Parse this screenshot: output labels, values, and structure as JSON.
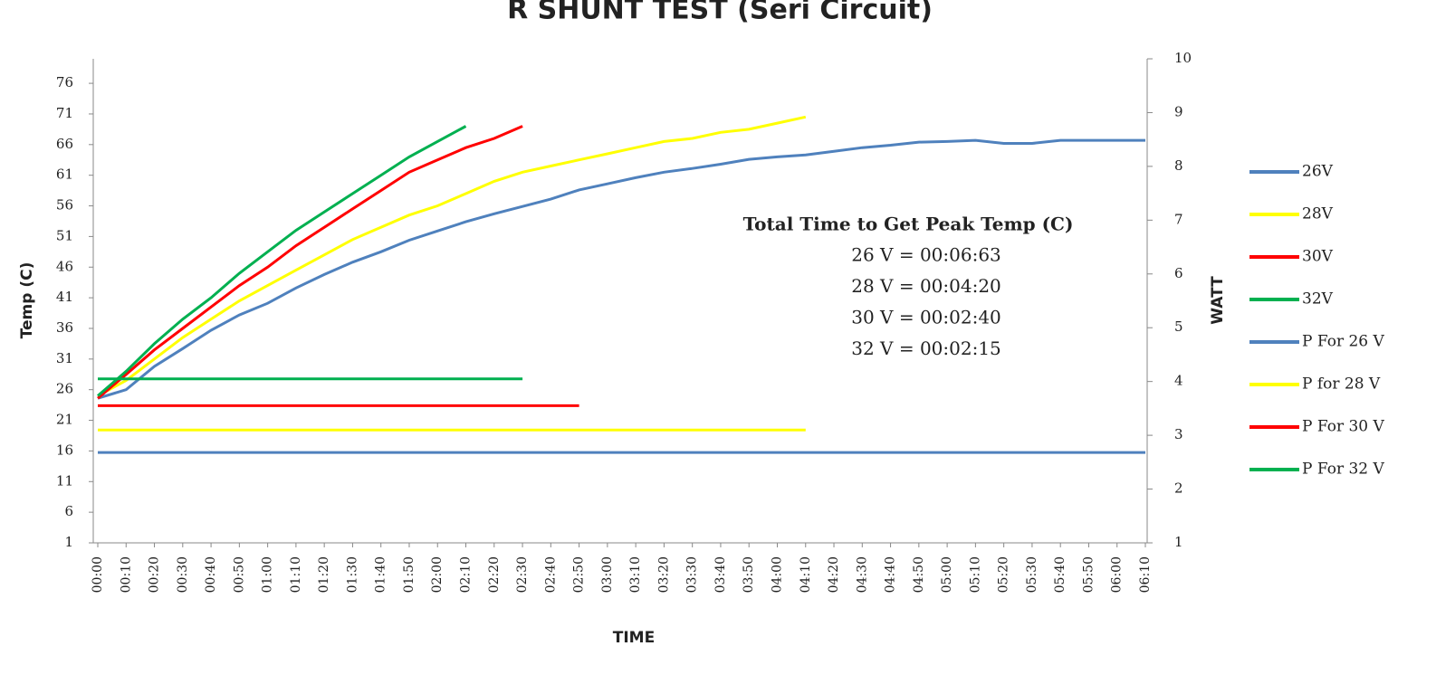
{
  "chart_data": {
    "type": "line",
    "title": "R SHUNT TEST (Seri Circuit)",
    "x_label": "TIME",
    "y_label": "Temp (C)",
    "y2_label": "WATT",
    "annotation_title": "Total Time to Get Peak Temp (C)",
    "annotation_lines": [
      "26 V = 00:06:63",
      "28 V = 00:04:20",
      "30 V = 00:02:40",
      "32 V =  00:02:15"
    ],
    "categories": [
      "00:00",
      "00:10",
      "00:20",
      "00:30",
      "00:40",
      "00:50",
      "01:00",
      "01:10",
      "01:20",
      "01:30",
      "01:40",
      "01:50",
      "02:00",
      "02:10",
      "02:20",
      "02:30",
      "02:40",
      "02:50",
      "03:00",
      "03:10",
      "03:20",
      "03:30",
      "03:40",
      "03:50",
      "04:00",
      "04:10",
      "04:20",
      "04:30",
      "04:40",
      "04:50",
      "05:00",
      "05:10",
      "05:20",
      "05:30",
      "05:40",
      "05:50",
      "06:00",
      "06:10"
    ],
    "ylim": [
      1,
      80
    ],
    "yticks": [
      1,
      6,
      11,
      16,
      21,
      26,
      31,
      36,
      41,
      46,
      51,
      56,
      61,
      66,
      71,
      76
    ],
    "y2lim": [
      1,
      10
    ],
    "y2ticks": [
      1,
      2,
      3,
      4,
      5,
      6,
      7,
      8,
      9,
      10
    ],
    "legend": "right",
    "series": [
      {
        "name": "26V",
        "color": "#4f81bd",
        "values": [
          24.6,
          26,
          29.8,
          32.7,
          35.7,
          38.2,
          40.1,
          42.6,
          44.8,
          46.8,
          48.5,
          50.4,
          51.9,
          53.4,
          54.7,
          55.9,
          57.1,
          58.6,
          59.6,
          60.6,
          61.5,
          62.1,
          62.8,
          63.6,
          64,
          64.3,
          64.9,
          65.5,
          65.9,
          66.4,
          66.5,
          66.7,
          66.2,
          66.2,
          66.7,
          66.7,
          66.7,
          66.7
        ]
      },
      {
        "name": "28V",
        "color": "#ffff00",
        "values": [
          25,
          27.5,
          31,
          34.5,
          37.5,
          40.5,
          43,
          45.5,
          48,
          50.5,
          52.5,
          54.5,
          56,
          58,
          60,
          61.5,
          62.5,
          63.5,
          64.5,
          65.5,
          66.5,
          67,
          68,
          68.5,
          69.5,
          70.5,
          null,
          null,
          null,
          null,
          null,
          null,
          null,
          null,
          null,
          null,
          null,
          null
        ]
      },
      {
        "name": "30V",
        "color": "#ff0000",
        "values": [
          24.6,
          28.5,
          32.5,
          36,
          39.5,
          43,
          46,
          49.5,
          52.5,
          55.5,
          58.5,
          61.5,
          63.5,
          65.5,
          67,
          69,
          null,
          null,
          null,
          null,
          null,
          null,
          null,
          null,
          null,
          null,
          null,
          null,
          null,
          null,
          null,
          null,
          null,
          null,
          null,
          null,
          null,
          null
        ]
      },
      {
        "name": "32V",
        "color": "#00b050",
        "values": [
          25,
          29,
          33.5,
          37.5,
          41,
          45,
          48.5,
          52,
          55,
          58,
          61,
          64,
          66.5,
          69,
          null,
          null,
          null,
          null,
          null,
          null,
          null,
          null,
          null,
          null,
          null,
          null,
          null,
          null,
          null,
          null,
          null,
          null,
          null,
          null,
          null,
          null,
          null,
          null
        ]
      },
      {
        "name": "P For 26 V",
        "color": "#4f81bd",
        "axis": "y2",
        "values": [
          2.68,
          2.68,
          2.68,
          2.68,
          2.68,
          2.68,
          2.68,
          2.68,
          2.68,
          2.68,
          2.68,
          2.68,
          2.68,
          2.68,
          2.68,
          2.68,
          2.68,
          2.68,
          2.68,
          2.68,
          2.68,
          2.68,
          2.68,
          2.68,
          2.68,
          2.68,
          2.68,
          2.68,
          2.68,
          2.68,
          2.68,
          2.68,
          2.68,
          2.68,
          2.68,
          2.68,
          2.68,
          2.68
        ]
      },
      {
        "name": "P for 28 V",
        "color": "#ffff00",
        "axis": "y2",
        "values": [
          3.1,
          3.1,
          3.1,
          3.1,
          3.1,
          3.1,
          3.1,
          3.1,
          3.1,
          3.1,
          3.1,
          3.1,
          3.1,
          3.1,
          3.1,
          3.1,
          3.1,
          3.1,
          3.1,
          3.1,
          3.1,
          3.1,
          3.1,
          3.1,
          3.1,
          3.1,
          null,
          null,
          null,
          null,
          null,
          null,
          null,
          null,
          null,
          null,
          null,
          null
        ]
      },
      {
        "name": "P For 30 V",
        "color": "#ff0000",
        "axis": "y2",
        "values": [
          3.55,
          3.55,
          3.55,
          3.55,
          3.55,
          3.55,
          3.55,
          3.55,
          3.55,
          3.55,
          3.55,
          3.55,
          3.55,
          3.55,
          3.55,
          3.55,
          3.55,
          3.55,
          null,
          null,
          null,
          null,
          null,
          null,
          null,
          null,
          null,
          null,
          null,
          null,
          null,
          null,
          null,
          null,
          null,
          null,
          null,
          null
        ]
      },
      {
        "name": "P For 32 V",
        "color": "#00b050",
        "axis": "y2",
        "values": [
          4.05,
          4.05,
          4.05,
          4.05,
          4.05,
          4.05,
          4.05,
          4.05,
          4.05,
          4.05,
          4.05,
          4.05,
          4.05,
          4.05,
          4.05,
          4.05,
          null,
          null,
          null,
          null,
          null,
          null,
          null,
          null,
          null,
          null,
          null,
          null,
          null,
          null,
          null,
          null,
          null,
          null,
          null,
          null,
          null,
          null
        ]
      }
    ]
  }
}
